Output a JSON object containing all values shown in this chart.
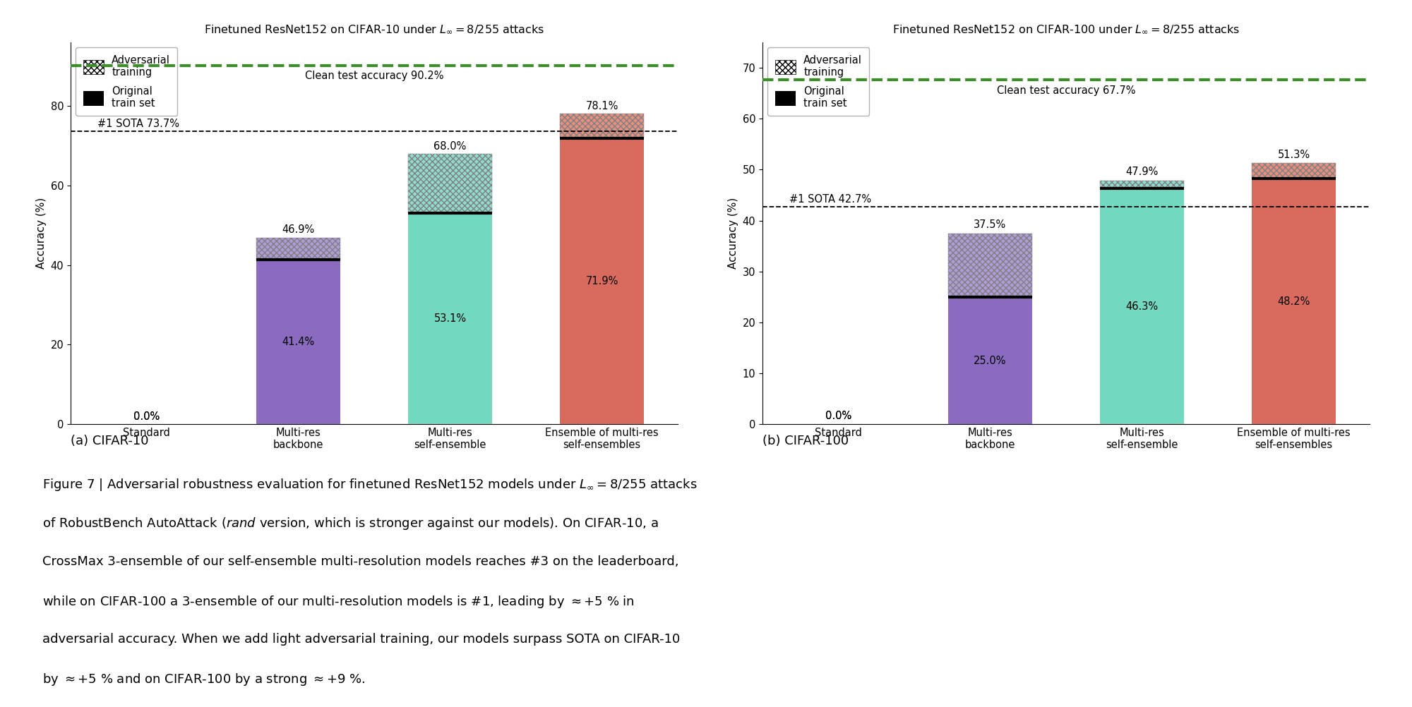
{
  "cifar10": {
    "title": "Finetuned ResNet152 on CIFAR-10 under $L_\\infty = 8/255$ attacks",
    "categories": [
      "Standard",
      "Multi-res\nbackbone",
      "Multi-res\nself-ensemble",
      "Ensemble of multi-res\nself-ensembles"
    ],
    "base_values": [
      0.0,
      41.4,
      53.1,
      71.9
    ],
    "adv_values": [
      0.0,
      5.5,
      14.9,
      6.2
    ],
    "top_labels": [
      "0.0%",
      "46.9%",
      "68.0%",
      "78.1%"
    ],
    "base_labels": [
      "0.0%",
      "41.4%",
      "53.1%",
      "71.9%"
    ],
    "bar_colors": [
      "#1a1a1a",
      "#8b6bbf",
      "#72d8c0",
      "#d96b5e"
    ],
    "hatch_colors": [
      "#1a1a1a",
      "#b09cd9",
      "#90ddd0",
      "#e89080"
    ],
    "sota_line": 73.7,
    "sota_label": "#1 SOTA 73.7%",
    "clean_acc": 90.2,
    "clean_label": "Clean test accuracy 90.2%",
    "ylim": [
      0,
      96
    ],
    "yticks": [
      0,
      20,
      40,
      60,
      80
    ],
    "ylabel": "Accuracy (%)",
    "caption": "(a) CIFAR-10"
  },
  "cifar100": {
    "title": "Finetuned ResNet152 on CIFAR-100 under $L_\\infty = 8/255$ attacks",
    "categories": [
      "Standard",
      "Multi-res\nbackbone",
      "Multi-res\nself-ensemble",
      "Ensemble of multi-res\nself-ensembles"
    ],
    "base_values": [
      0.0,
      25.0,
      46.3,
      48.2
    ],
    "adv_values": [
      0.0,
      12.5,
      1.6,
      3.1
    ],
    "top_labels": [
      "0.0%",
      "37.5%",
      "47.9%",
      "51.3%"
    ],
    "base_labels": [
      "0.0%",
      "25.0%",
      "46.3%",
      "48.2%"
    ],
    "bar_colors": [
      "#1a1a1a",
      "#8b6bbf",
      "#72d8c0",
      "#d96b5e"
    ],
    "hatch_colors": [
      "#1a1a1a",
      "#b09cd9",
      "#90ddd0",
      "#e89080"
    ],
    "sota_line": 42.7,
    "sota_label": "#1 SOTA 42.7%",
    "clean_acc": 67.7,
    "clean_label": "Clean test accuracy 67.7%",
    "ylim": [
      0,
      75
    ],
    "yticks": [
      0,
      10,
      20,
      30,
      40,
      50,
      60,
      70
    ],
    "ylabel": "Accuracy (%)",
    "caption": "(b) CIFAR-100"
  },
  "legend_items": [
    "Adversarial\ntraining",
    "Original\ntrain set"
  ],
  "caption_lines": [
    "Figure 7 | Adversarial robustness evaluation for finetuned ResNet152 models under $L_\\infty = 8/255$ attacks",
    "of RobustBench AutoAttack ($\\it{rand}$ version, which is stronger against our models). On CIFAR-10, a",
    "CrossMax 3-ensemble of our self-ensemble multi-resolution models reaches #3 on the leaderboard,",
    "while on CIFAR-100 a 3-ensemble of our multi-resolution models is #1, leading by $\\approx$+5 % in",
    "adversarial accuracy. When we add light adversarial training, our models surpass SOTA on CIFAR-10",
    "by $\\approx$+5 % and on CIFAR-100 by a strong $\\approx$+9 %."
  ]
}
